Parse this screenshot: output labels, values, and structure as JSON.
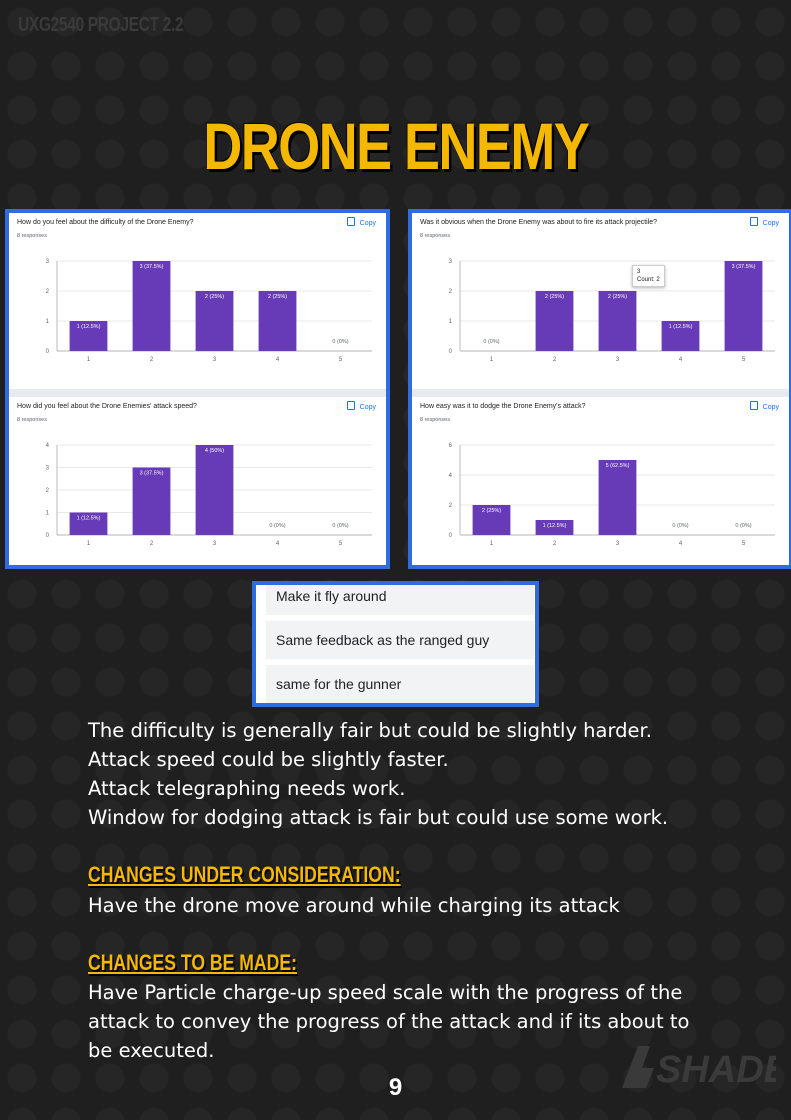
{
  "header": {
    "label": "UXG2540 PROJECT 2.2"
  },
  "title": "DRONE ENEMY",
  "copy_label": "Copy",
  "charts": [
    {
      "question": "How do you feel about the difficulty of the Drone Enemy?",
      "responses": "8 responses",
      "chart_data": {
        "type": "bar",
        "categories": [
          "1",
          "2",
          "3",
          "4",
          "5"
        ],
        "values": [
          1,
          3,
          2,
          2,
          0
        ],
        "data_labels": [
          "1 (12.5%)",
          "3 (37.5%)",
          "2 (25%)",
          "2 (25%)",
          "0 (0%)"
        ],
        "yticks": [
          "0",
          "1",
          "2",
          "3"
        ],
        "ylim": [
          0,
          3
        ],
        "color": "#673ab7"
      }
    },
    {
      "question": "Was it obvious when the Drone Enemy was about to fire its attack projectile?",
      "responses": "8 responses",
      "tooltip": {
        "value": "3",
        "text": "Count: 2"
      },
      "chart_data": {
        "type": "bar",
        "categories": [
          "1",
          "2",
          "3",
          "4",
          "5"
        ],
        "values": [
          0,
          2,
          2,
          1,
          3
        ],
        "data_labels": [
          "0 (0%)",
          "2 (25%)",
          "2 (25%)",
          "1 (12.5%)",
          "3 (37.5%)"
        ],
        "yticks": [
          "0",
          "1",
          "2",
          "3"
        ],
        "ylim": [
          0,
          3
        ],
        "color": "#673ab7"
      }
    },
    {
      "question": "How did you feel about the Drone Enemies' attack speed?",
      "responses": "8 responses",
      "chart_data": {
        "type": "bar",
        "categories": [
          "1",
          "2",
          "3",
          "4",
          "5"
        ],
        "values": [
          1,
          3,
          4,
          0,
          0
        ],
        "data_labels": [
          "1 (12.5%)",
          "3 (37.5%)",
          "4 (50%)",
          "0 (0%)",
          "0 (0%)"
        ],
        "yticks": [
          "0",
          "1",
          "2",
          "3",
          "4"
        ],
        "ylim": [
          0,
          4
        ],
        "color": "#673ab7"
      }
    },
    {
      "question": "How easy was it to dodge the Drone Enemy's attack?",
      "responses": "8 responses",
      "chart_data": {
        "type": "bar",
        "categories": [
          "1",
          "2",
          "3",
          "4",
          "5"
        ],
        "values": [
          2,
          1,
          5,
          0,
          0
        ],
        "data_labels": [
          "2 (25%)",
          "1 (12.5%)",
          "5 (62.5%)",
          "0 (0%)",
          "0 (0%)"
        ],
        "yticks": [
          "0",
          "2",
          "4",
          "6"
        ],
        "ylim": [
          0,
          6
        ],
        "color": "#673ab7"
      }
    }
  ],
  "responses_list": [
    "Make it fly around",
    "Same feedback as the ranged guy",
    "same for the gunner"
  ],
  "summary": [
    "The difficulty is generally fair but could be slightly harder.",
    "Attack speed could be slightly faster.",
    "Attack telegraphing needs work.",
    "Window for dodging attack is fair but could use some work."
  ],
  "consideration": {
    "heading": "CHANGES UNDER CONSIDERATION:",
    "text": "Have the drone move around while charging its attack"
  },
  "to_be_made": {
    "heading": "CHANGES TO BE MADE:",
    "text": "Have Particle charge-up speed scale with the progress of the attack to convey the progress of the attack and if its about to be executed."
  },
  "page_number": "9",
  "logo_text": "SHADE"
}
